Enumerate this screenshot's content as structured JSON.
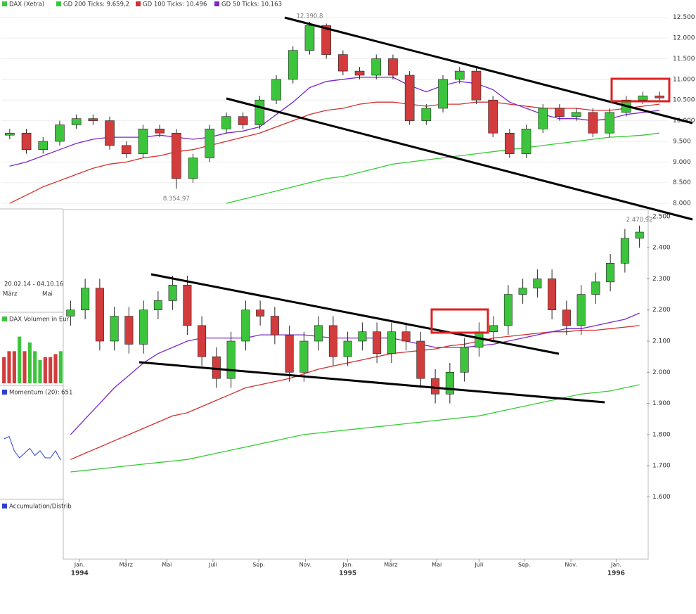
{
  "chart_data": [
    {
      "type": "candlestick",
      "ohlc_name": "DAX (Xetra)",
      "up_color": "#3cc43c",
      "down_color": "#d23c3c",
      "ohlc": {
        "open": [
          9650,
          9700,
          9300,
          9500,
          9900,
          10050,
          10000,
          9400,
          9200,
          9800,
          9700,
          8600,
          9100,
          9800,
          10100,
          9900,
          10500,
          11000,
          11700,
          12300,
          11600,
          11200,
          11100,
          11500,
          11100,
          10000,
          10300,
          11000,
          11200,
          10500,
          9700,
          9200,
          9800,
          10300,
          10100,
          10200,
          9700,
          10200,
          10500,
          10600
        ],
        "high": [
          9800,
          9800,
          9600,
          10000,
          10150,
          10150,
          10100,
          9500,
          9900,
          9900,
          9800,
          9200,
          9900,
          10200,
          10200,
          10600,
          11100,
          11800,
          12390.8,
          12350,
          11700,
          11300,
          11600,
          11600,
          11200,
          10400,
          11100,
          11300,
          11300,
          10600,
          9800,
          9900,
          10400,
          10400,
          10300,
          10300,
          10300,
          10600,
          10700,
          10700
        ],
        "low": [
          9550,
          9200,
          9200,
          9400,
          9800,
          9900,
          9300,
          9100,
          9100,
          9600,
          8354.97,
          8500,
          9000,
          9700,
          9800,
          9800,
          10400,
          10900,
          11600,
          11500,
          11100,
          11000,
          11000,
          11000,
          9900,
          9900,
          10200,
          10900,
          10400,
          9600,
          9100,
          9100,
          9700,
          10000,
          10000,
          9600,
          9600,
          10100,
          10400,
          10450
        ],
        "close": [
          9700,
          9300,
          9500,
          9900,
          10050,
          10000,
          9400,
          9200,
          9800,
          9700,
          8600,
          9100,
          9800,
          10100,
          9900,
          10500,
          11000,
          11700,
          12300,
          11600,
          11200,
          11100,
          11500,
          11100,
          10000,
          10300,
          11000,
          11200,
          10500,
          9700,
          9200,
          9800,
          10300,
          10100,
          10200,
          9700,
          10200,
          10500,
          10600,
          10550
        ]
      },
      "series": [
        {
          "name": "GD 200 Ticks: 9.659,2",
          "color": "#33cc33",
          "values": [
            null,
            null,
            null,
            null,
            null,
            null,
            null,
            null,
            null,
            null,
            null,
            null,
            null,
            8000,
            8100,
            8200,
            8300,
            8400,
            8500,
            8600,
            8650,
            8750,
            8850,
            8950,
            9000,
            9050,
            9100,
            9150,
            9200,
            9250,
            9300,
            9350,
            9400,
            9450,
            9500,
            9550,
            9600,
            9620,
            9650,
            9700
          ]
        },
        {
          "name": "GD 100 Ticks: 10.496",
          "color": "#d23030",
          "values": [
            8000,
            8200,
            8400,
            8550,
            8700,
            8850,
            8950,
            9000,
            9100,
            9150,
            9250,
            9300,
            9400,
            9500,
            9600,
            9700,
            9850,
            10000,
            10150,
            10250,
            10300,
            10400,
            10450,
            10450,
            10400,
            10350,
            10400,
            10400,
            10450,
            10450,
            10400,
            10350,
            10300,
            10300,
            10300,
            10250,
            10250,
            10300,
            10350,
            10400
          ]
        },
        {
          "name": "GD 50 Ticks: 10.163",
          "color": "#7a28c8",
          "values": [
            8900,
            9000,
            9150,
            9300,
            9450,
            9550,
            9600,
            9600,
            9600,
            9650,
            9600,
            9550,
            9600,
            9700,
            9750,
            9850,
            10150,
            10450,
            10800,
            10950,
            11000,
            11050,
            11050,
            11050,
            10850,
            10700,
            10850,
            10950,
            10900,
            10750,
            10450,
            10300,
            10150,
            10050,
            10050,
            10000,
            10050,
            10150,
            10200,
            10250
          ]
        }
      ],
      "ylim": [
        7900,
        12750
      ],
      "yticks": [
        {
          "value": 8000,
          "label": "8.000"
        },
        {
          "value": 8500,
          "label": "8.500"
        },
        {
          "value": 9000,
          "label": "9.000"
        },
        {
          "value": 9500,
          "label": "9.500"
        },
        {
          "value": 10000,
          "label": "10.000"
        },
        {
          "value": 10500,
          "label": "10.500"
        },
        {
          "value": 11000,
          "label": "11.000"
        },
        {
          "value": 11500,
          "label": "11.500"
        },
        {
          "value": 12000,
          "label": "12.000"
        },
        {
          "value": 12500,
          "label": "12.500"
        }
      ],
      "grid": true,
      "annotations": [
        {
          "text": "12.390,8",
          "x": 18,
          "y": 12390.8
        },
        {
          "text": "8.354,97",
          "x": 10,
          "y": 8354.97
        }
      ]
    },
    {
      "type": "candlestick",
      "up_color": "#3cc43c",
      "down_color": "#d23c3c",
      "ohlc": {
        "open": [
          2180,
          2200,
          2270,
          2100,
          2180,
          2090,
          2200,
          2230,
          2280,
          2150,
          2050,
          1980,
          2100,
          2200,
          2180,
          2120,
          2000,
          2100,
          2150,
          2050,
          2100,
          2130,
          2060,
          2130,
          2100,
          1980,
          1930,
          2000,
          2080,
          2130,
          2150,
          2250,
          2270,
          2300,
          2200,
          2150,
          2250,
          2290,
          2350,
          2430
        ],
        "high": [
          2230,
          2300,
          2300,
          2210,
          2210,
          2230,
          2260,
          2310,
          2310,
          2180,
          2080,
          2130,
          2230,
          2230,
          2210,
          2150,
          2130,
          2180,
          2180,
          2130,
          2160,
          2160,
          2160,
          2160,
          2130,
          2010,
          2030,
          2110,
          2160,
          2180,
          2280,
          2300,
          2330,
          2330,
          2230,
          2280,
          2320,
          2380,
          2460,
          2470.92
        ],
        "low": [
          2150,
          2170,
          2070,
          2070,
          2060,
          2060,
          2170,
          2200,
          2120,
          2020,
          1950,
          1950,
          2070,
          2150,
          2090,
          1970,
          1970,
          2070,
          2020,
          2020,
          2070,
          2030,
          2030,
          2070,
          1950,
          1900,
          1900,
          1970,
          2050,
          2100,
          2120,
          2220,
          2240,
          2170,
          2120,
          2120,
          2220,
          2260,
          2320,
          2400
        ],
        "close": [
          2200,
          2270,
          2100,
          2180,
          2090,
          2200,
          2230,
          2280,
          2150,
          2050,
          1980,
          2100,
          2200,
          2180,
          2120,
          2000,
          2100,
          2150,
          2050,
          2100,
          2130,
          2060,
          2130,
          2100,
          1980,
          1930,
          2000,
          2080,
          2130,
          2150,
          2250,
          2270,
          2300,
          2200,
          2150,
          2250,
          2290,
          2350,
          2430,
          2450
        ]
      },
      "series": [
        {
          "color": "#33cc33",
          "values": [
            1680,
            1685,
            1690,
            1695,
            1700,
            1705,
            1710,
            1715,
            1720,
            1730,
            1740,
            1750,
            1760,
            1770,
            1780,
            1790,
            1800,
            1805,
            1810,
            1815,
            1820,
            1825,
            1830,
            1835,
            1840,
            1845,
            1850,
            1855,
            1860,
            1870,
            1880,
            1890,
            1900,
            1910,
            1920,
            1930,
            1935,
            1940,
            1950,
            1960
          ]
        },
        {
          "color": "#d23030",
          "values": [
            1720,
            1740,
            1760,
            1780,
            1800,
            1820,
            1840,
            1860,
            1870,
            1890,
            1910,
            1930,
            1950,
            1960,
            1970,
            1980,
            1995,
            2010,
            2020,
            2030,
            2040,
            2050,
            2060,
            2065,
            2070,
            2075,
            2085,
            2090,
            2100,
            2110,
            2115,
            2120,
            2125,
            2130,
            2130,
            2135,
            2135,
            2140,
            2145,
            2150
          ]
        },
        {
          "color": "#7a28c8",
          "values": [
            1800,
            1850,
            1900,
            1950,
            1990,
            2030,
            2060,
            2080,
            2100,
            2110,
            2110,
            2110,
            2110,
            2120,
            2120,
            2120,
            2120,
            2115,
            2110,
            2110,
            2110,
            2110,
            2110,
            2100,
            2090,
            2080,
            2080,
            2080,
            2085,
            2090,
            2100,
            2110,
            2120,
            2130,
            2140,
            2140,
            2150,
            2160,
            2170,
            2190
          ]
        }
      ],
      "xlim": [
        -0.5,
        39.5
      ],
      "ylim": [
        1400,
        2520
      ],
      "yticks": [
        {
          "value": 1600,
          "label": "1.600"
        },
        {
          "value": 1700,
          "label": "1.700"
        },
        {
          "value": 1800,
          "label": "1.800"
        },
        {
          "value": 1900,
          "label": "1.900"
        },
        {
          "value": 2000,
          "label": "2.000"
        },
        {
          "value": 2100,
          "label": "2.100"
        },
        {
          "value": 2200,
          "label": "2.200"
        },
        {
          "value": 2300,
          "label": "2.300"
        },
        {
          "value": 2400,
          "label": "2.400"
        },
        {
          "value": 2500,
          "label": "2.500"
        }
      ],
      "grid": false,
      "xticks": [
        {
          "value": 0.62,
          "label": "Jan."
        },
        {
          "value": 3.8,
          "label": "März"
        },
        {
          "value": 6.6,
          "label": "Mai"
        },
        {
          "value": 9.76,
          "label": "Juli"
        },
        {
          "value": 12.9,
          "label": "Sep."
        },
        {
          "value": 16.1,
          "label": "Nov."
        },
        {
          "value": 19,
          "label": "Jan."
        },
        {
          "value": 21.95,
          "label": "März"
        },
        {
          "value": 25.1,
          "label": "Mai"
        },
        {
          "value": 28,
          "label": "Juli"
        },
        {
          "value": 31.1,
          "label": "Sep."
        },
        {
          "value": 34.3,
          "label": "Nov."
        },
        {
          "value": 37.4,
          "label": "Jan."
        }
      ],
      "x_year_ticks": [
        {
          "value": 0.62,
          "label": "1994"
        },
        {
          "value": 19,
          "label": "1995"
        },
        {
          "value": 37.4,
          "label": "1996"
        }
      ],
      "annotations": [
        {
          "text": "2.470,92",
          "x": 39,
          "y": 2470.92
        }
      ]
    },
    {
      "type": "bar",
      "title": "DAX Volumen in Eur",
      "legend_color": "#3cc43c",
      "ylim": [
        0,
        100
      ],
      "values": [
        45,
        55,
        55,
        80,
        55,
        70,
        55,
        40,
        45,
        45,
        50,
        55
      ],
      "colors": [
        "#d23c3c",
        "#d23c3c",
        "#d23c3c",
        "#3cc43c",
        "#d23c3c",
        "#3cc43c",
        "#3cc43c",
        "#3cc43c",
        "#d23c3c",
        "#d23c3c",
        "#d23c3c",
        "#3cc43c"
      ]
    },
    {
      "type": "line",
      "title": "Momentum (20): 651",
      "color": "#2b3fd1",
      "ylim": [
        -100,
        100
      ],
      "values": [
        20,
        25,
        -5,
        -20,
        -10,
        0,
        -15,
        -5,
        -20,
        -20,
        -5,
        -25
      ]
    }
  ],
  "sidebar": {
    "range": "20.02.14 - 04.10.16",
    "months": [
      "März",
      "Mai"
    ],
    "accdist_label": "Accumulation/Distrib"
  }
}
